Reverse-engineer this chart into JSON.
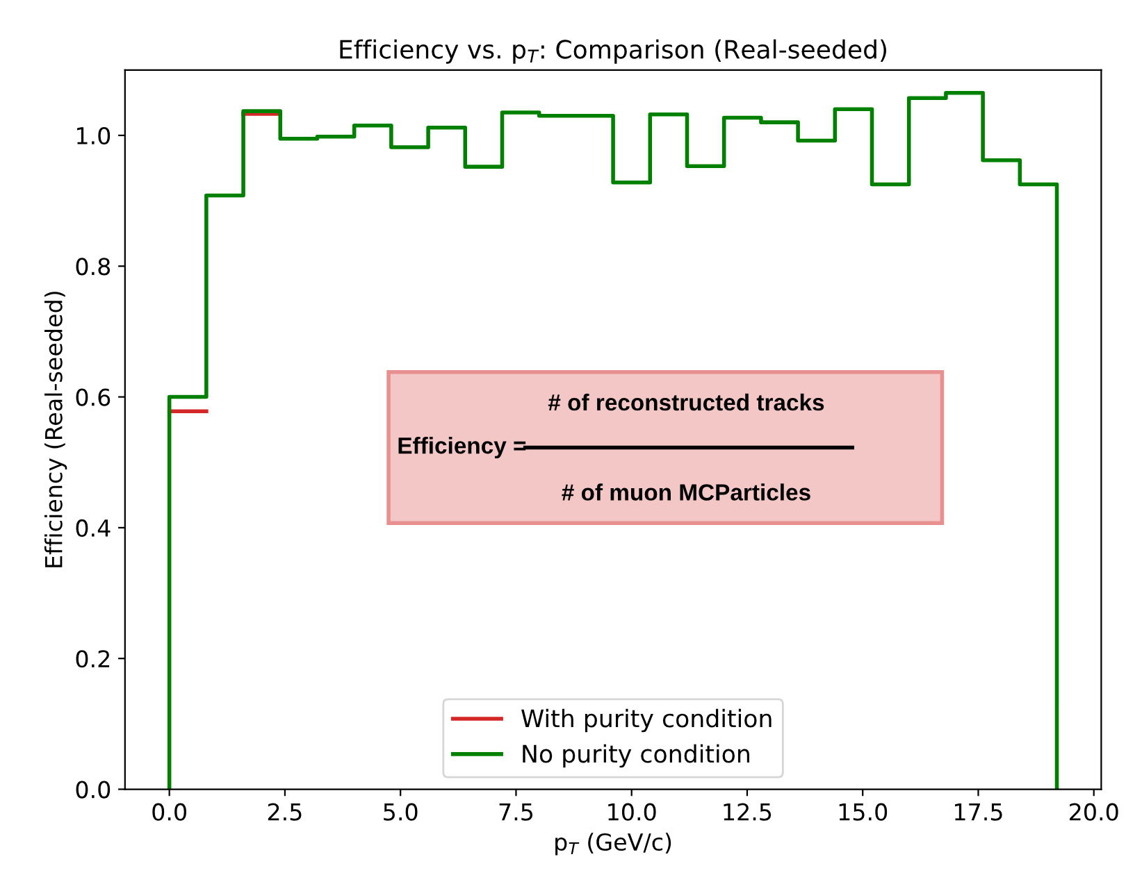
{
  "chart_data": {
    "type": "step",
    "title": "Efficiency vs. p$_{T}$: Comparison (Real-seeded)",
    "xlabel": "p$_{T}$ (GeV/c)",
    "ylabel": "Efficiency (Real-seeded)",
    "x": [
      0,
      0,
      0.8,
      1.6,
      2.4,
      3.2,
      4.0,
      4.8,
      5.6,
      6.4,
      7.2,
      8.0,
      8.8,
      9.6,
      10.4,
      11.2,
      12.0,
      12.8,
      13.6,
      14.4,
      15.2,
      16.0,
      16.8,
      17.6,
      18.4,
      19.2
    ],
    "series": [
      {
        "name": "With purity condition",
        "color": "#d62728",
        "type": "line",
        "x": [
          0,
          0.8,
          null,
          1.6,
          2.4
        ],
        "values": [
          0.578,
          0.578,
          null,
          1.033,
          1.033
        ]
      },
      {
        "name": "No purity condition",
        "color": "#008000",
        "values": [
          0,
          0.6,
          0.908,
          1.037,
          0.995,
          0.998,
          1.015,
          0.982,
          1.012,
          0.952,
          1.035,
          1.03,
          1.03,
          0.928,
          1.032,
          0.953,
          1.027,
          1.02,
          0.992,
          1.04,
          0.925,
          1.057,
          1.065,
          0.962,
          0.925,
          0
        ]
      }
    ],
    "xlim": [
      -0.96,
      20.16
    ],
    "ylim": [
      0,
      1.1
    ],
    "xticks": [
      {
        "value": 0,
        "label": "0.0"
      },
      2.5,
      {
        "value": 5,
        "label": "5.0"
      },
      7.5,
      {
        "value": 10,
        "label": "10.0"
      },
      12.5,
      {
        "value": 15,
        "label": "15.0"
      },
      17.5,
      {
        "value": 20,
        "label": "20.0"
      }
    ],
    "yticks": [
      {
        "value": 0,
        "label": "0.0"
      },
      0.2,
      0.4,
      0.6,
      0.8,
      {
        "value": 1,
        "label": "1.0"
      }
    ],
    "legend": "bottom",
    "grid": false,
    "annotations": [
      "Efficiency =",
      "# of reconstructed tracks",
      "# of muon MCParticles"
    ]
  }
}
